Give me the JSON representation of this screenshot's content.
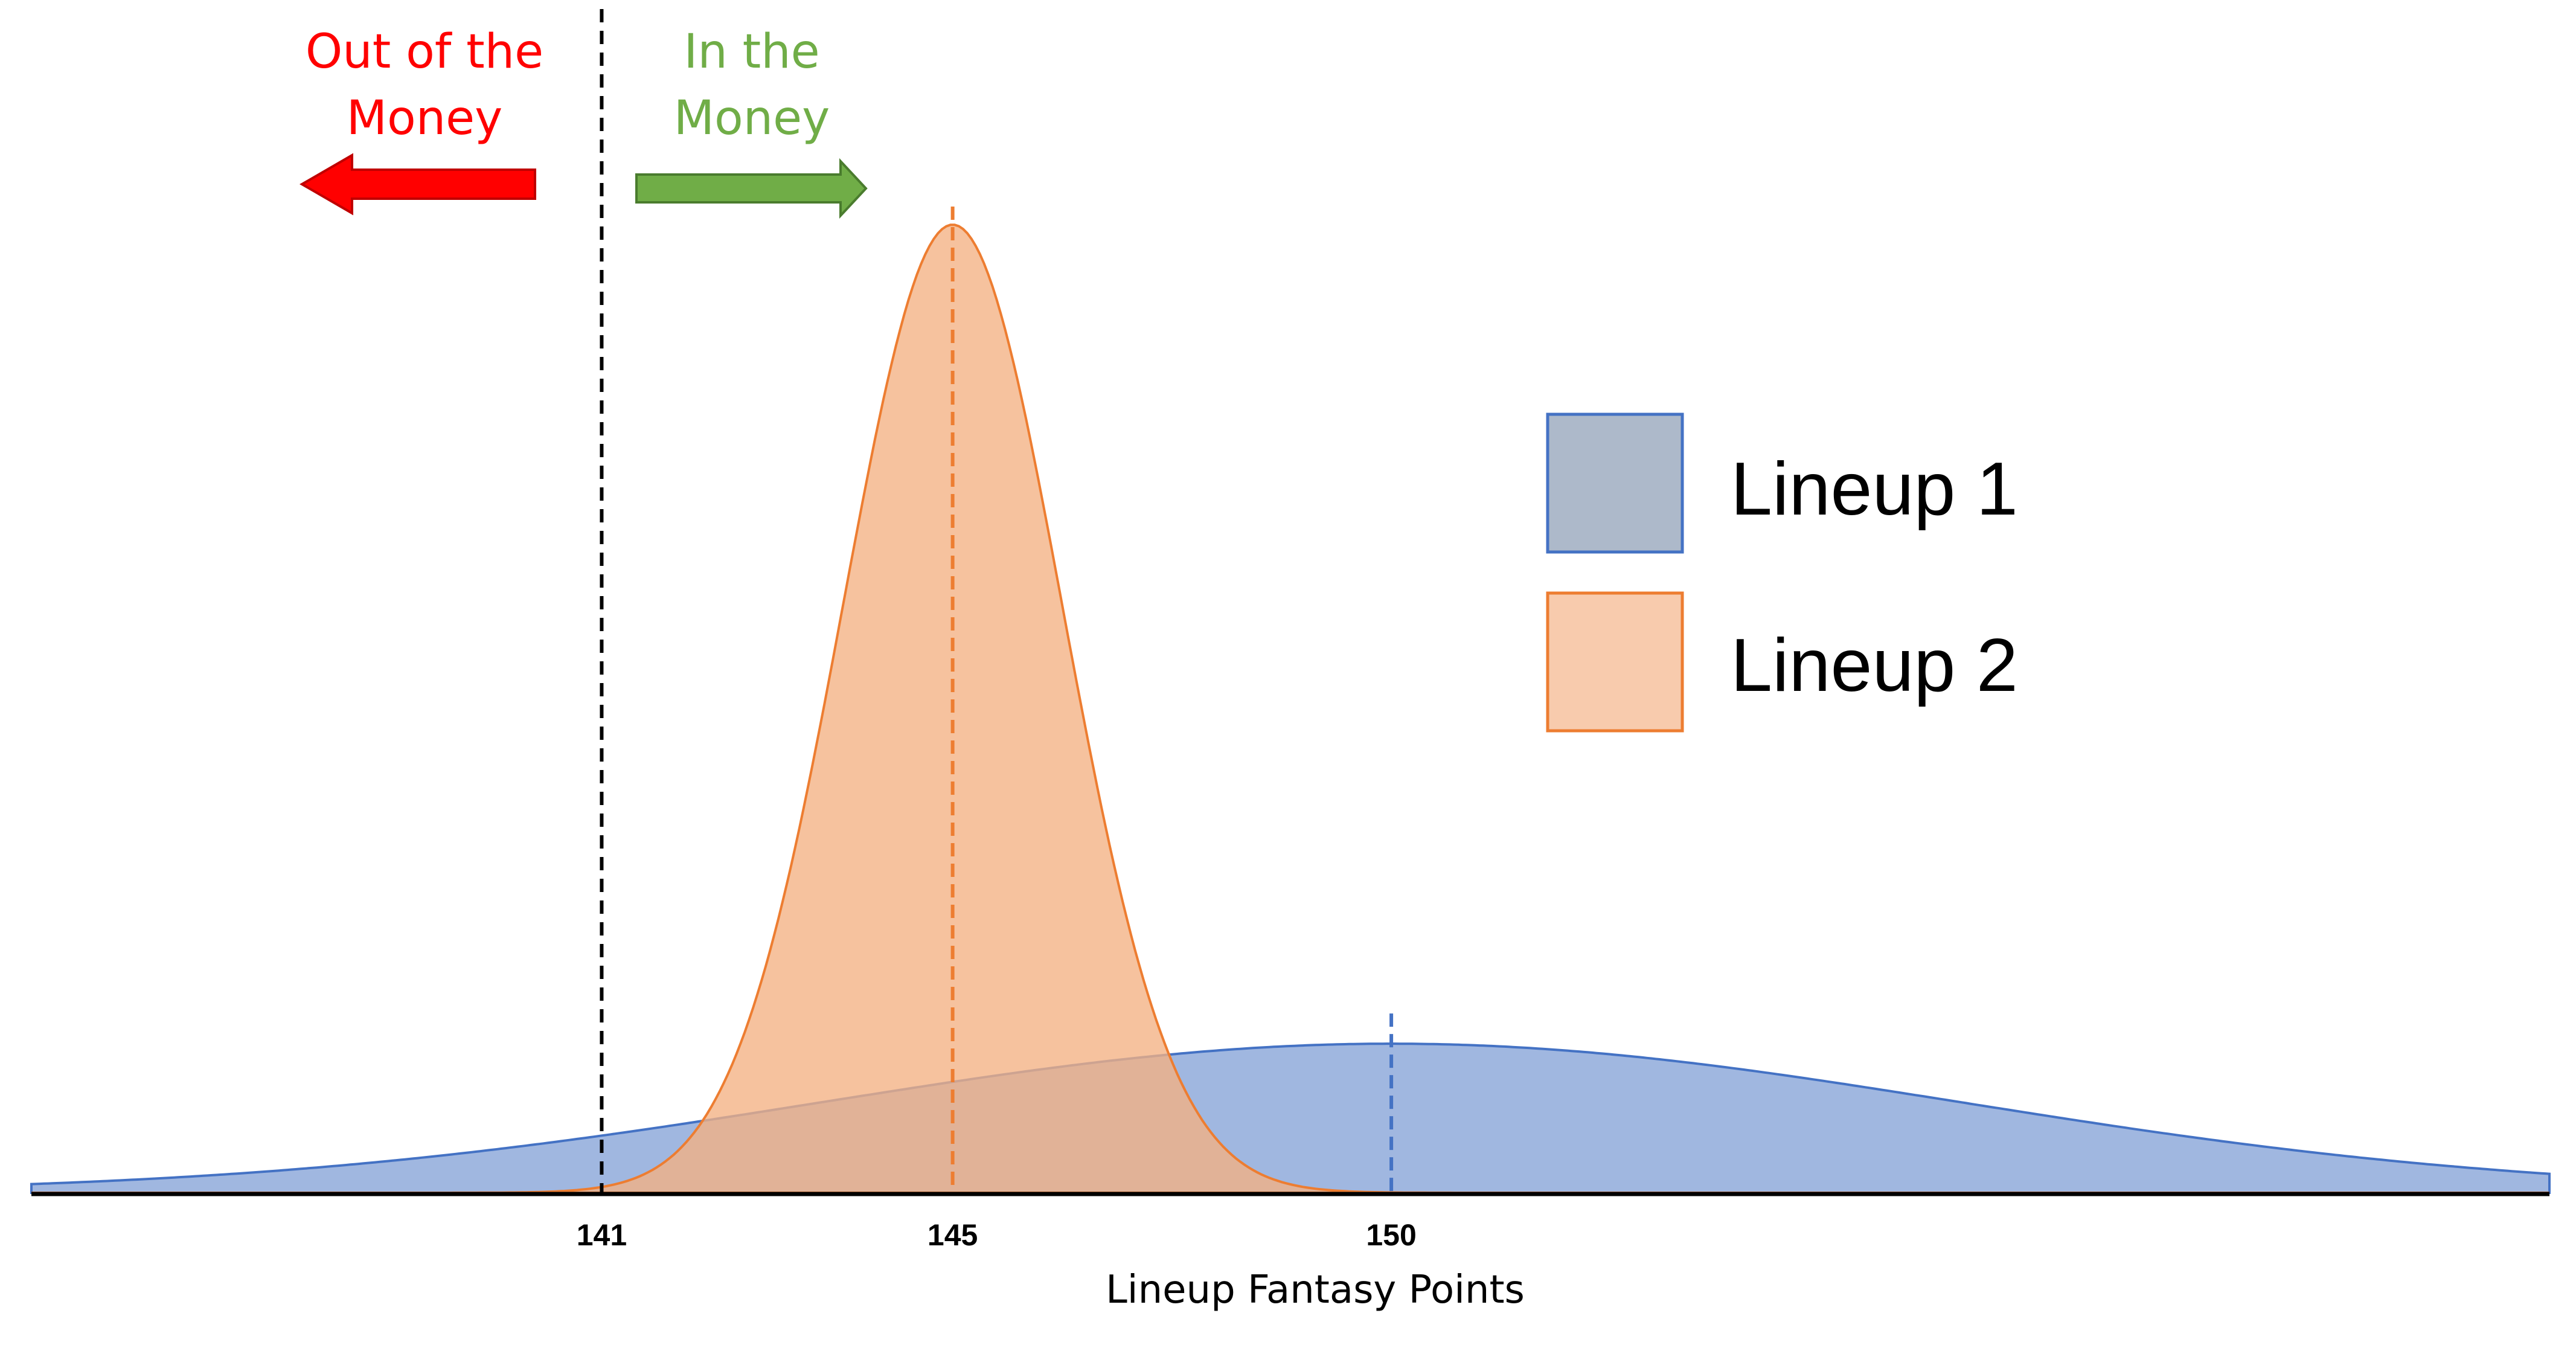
{
  "chart_data": {
    "type": "area",
    "xlabel": "Lineup Fantasy Points",
    "ticks": [
      141,
      145,
      150
    ],
    "xlim": [
      134.5,
      163.2
    ],
    "cutoff": 141,
    "zones": {
      "out": {
        "label_lines": [
          "Out of the",
          "Money"
        ],
        "color": "#ff0000"
      },
      "in": {
        "label_lines": [
          "In the",
          "Money"
        ],
        "color": "#70ad47"
      }
    },
    "series": [
      {
        "name": "Lineup 1",
        "mean": 150,
        "sd": 6.5,
        "peak": 0.154,
        "fill": "#a0b7e0",
        "stroke": "#4472c4",
        "legend_fill": "#adb9ca"
      },
      {
        "name": "Lineup 2",
        "mean": 145,
        "sd": 1.25,
        "peak": 1.0,
        "fill": "#f4b183",
        "stroke": "#ed7d31",
        "legend_fill": "#f8cbad"
      }
    ]
  }
}
